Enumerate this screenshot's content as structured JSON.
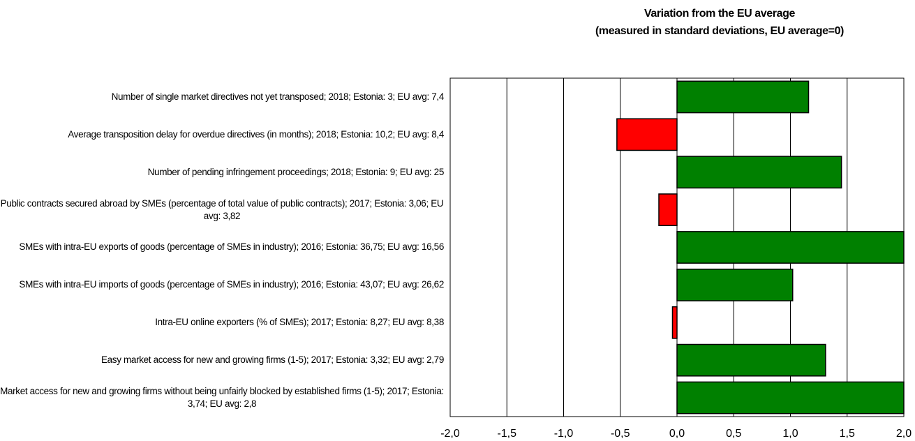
{
  "chart_data": {
    "type": "hbar",
    "title": "Variation from the EU average",
    "subtitle": "(measured in standard deviations, EU average=0)",
    "categories": [
      "Number of single market directives not yet transposed; 2018; Estonia: 3; EU avg: 7,4",
      "Average transposition delay for overdue directives (in months); 2018; Estonia: 10,2; EU avg: 8,4",
      "Number of pending infringement proceedings; 2018; Estonia: 9; EU avg: 25",
      "Public contracts secured abroad by SMEs (percentage of total value of public contracts); 2017; Estonia: 3,06; EU avg: 3,82",
      "SMEs with intra-EU exports of goods (percentage of SMEs in industry); 2016; Estonia: 36,75; EU avg: 16,56",
      "SMEs with intra-EU imports of goods (percentage of SMEs in industry); 2016; Estonia: 43,07; EU avg: 26,62",
      "Intra-EU online exporters (% of SMEs); 2017; Estonia: 8,27; EU avg: 8,38",
      "Easy market access for new and growing firms (1-5); 2017; Estonia: 3,32; EU avg: 2,79",
      "Market access for new and growing firms without being unfairly blocked by established firms (1-5); 2017; Estonia: 3,74; EU avg: 2,8"
    ],
    "values": [
      1.16,
      -0.53,
      1.45,
      -0.16,
      2.0,
      1.02,
      -0.04,
      1.31,
      2.0
    ],
    "positive_color": "#008000",
    "negative_color": "#ff0000",
    "xlim": [
      -2.0,
      2.0
    ],
    "xticks": [
      {
        "value": -2.0,
        "label": "-2,0"
      },
      {
        "value": -1.5,
        "label": "-1,5"
      },
      {
        "value": -1.0,
        "label": "-1,0"
      },
      {
        "value": -0.5,
        "label": "-0,5"
      },
      {
        "value": 0.0,
        "label": "0,0"
      },
      {
        "value": 0.5,
        "label": "0,5"
      },
      {
        "value": 1.0,
        "label": "1,0"
      },
      {
        "value": 1.5,
        "label": "1,5"
      },
      {
        "value": 2.0,
        "label": "2,0"
      }
    ],
    "grid": true
  }
}
